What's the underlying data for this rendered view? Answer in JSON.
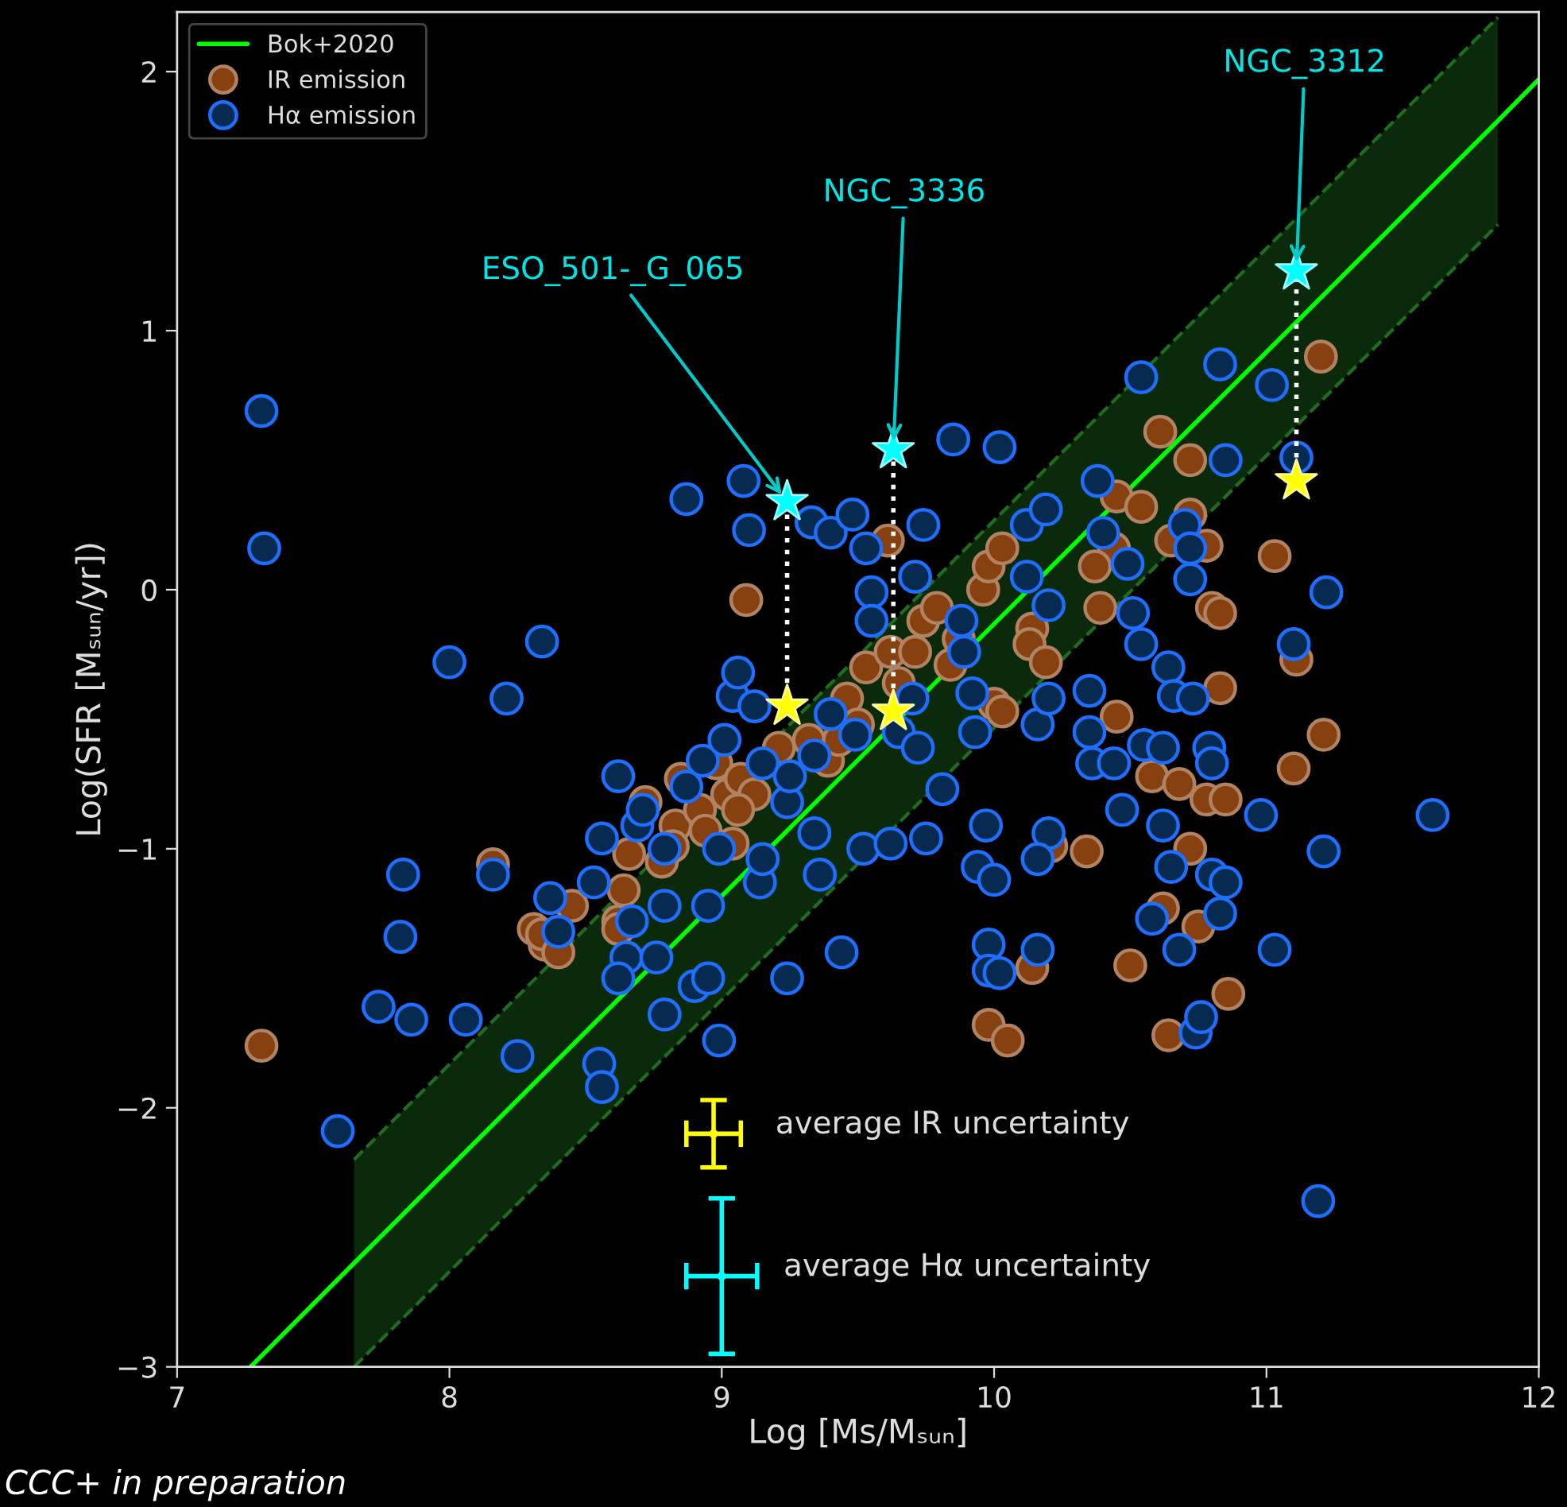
{
  "chart_data": {
    "type": "scatter",
    "xlabel": "Log [Ms/Mₛᵤₙ]",
    "ylabel": "Log(SFR [Mₛᵤₙ/yr])",
    "xlim": [
      7,
      12
    ],
    "ylim": [
      -3,
      2.23
    ],
    "xticks": [
      7,
      8,
      9,
      10,
      11,
      12
    ],
    "yticks": [
      -3,
      -2,
      -1,
      0,
      1,
      2
    ],
    "grid": false,
    "legend": "top left",
    "series": [
      {
        "name": "Bok+2020",
        "type": "line",
        "color": "#00ff00",
        "marker": "none",
        "line_style": "solid",
        "x": [
          7.27,
          7.65,
          11.85,
          12
        ],
        "values": [
          -3.0,
          -2.6,
          1.81,
          1.97
        ],
        "lower": [
          null,
          -3.0,
          1.41,
          null
        ],
        "upper": [
          null,
          -2.2,
          2.21,
          null
        ]
      },
      {
        "type": "line",
        "color": "#1e6e1e",
        "marker": "none",
        "line_style": "dashed",
        "x": [
          7.65,
          11.85
        ],
        "values": [
          -3.0,
          1.41
        ]
      },
      {
        "type": "line",
        "color": "#1e6e1e",
        "marker": "none",
        "line_style": "dashed",
        "x": [
          7.65,
          11.85
        ],
        "values": [
          -2.2,
          2.21
        ]
      },
      {
        "name": "IR emission",
        "color": "#87400f",
        "marker": "circle",
        "x": [
          7.31,
          8.16,
          8.31,
          8.35,
          8.45,
          8.62,
          8.64,
          8.72,
          8.83,
          8.85,
          8.92,
          8.98,
          9.02,
          9.09,
          9.07,
          9.12,
          9.21,
          9.32,
          9.39,
          9.43,
          9.46,
          9.5,
          9.53,
          9.61,
          9.62,
          9.65,
          9.71,
          9.74,
          9.79,
          9.84,
          9.87,
          9.96,
          9.98,
          10.03,
          10.0,
          10.03,
          10.14,
          10.13,
          10.19,
          10.39,
          10.44,
          10.61,
          10.72,
          10.45,
          10.54,
          10.72,
          10.65,
          10.78,
          10.37,
          10.8,
          10.83,
          11.03,
          11.2,
          11.11,
          10.83,
          10.45,
          11.21,
          11.1,
          10.58,
          10.68,
          10.78,
          10.85,
          10.21,
          10.34,
          10.72,
          10.62,
          10.75,
          10.14,
          10.5,
          10.86,
          9.98,
          10.05,
          10.64,
          8.34,
          8.4,
          8.62,
          8.66,
          8.78,
          8.82,
          8.94,
          9.04,
          9.06
        ],
        "values": [
          -1.76,
          -1.06,
          -1.31,
          -1.37,
          -1.22,
          -1.28,
          -1.16,
          -0.82,
          -0.91,
          -0.73,
          -0.85,
          -0.67,
          -0.79,
          -0.04,
          -0.73,
          -0.79,
          -0.61,
          -0.58,
          -0.66,
          -0.58,
          -0.42,
          -0.52,
          -0.3,
          0.19,
          -0.24,
          -0.36,
          -0.24,
          -0.12,
          -0.07,
          -0.29,
          -0.19,
          0.0,
          0.09,
          0.16,
          -0.44,
          -0.47,
          -0.15,
          -0.21,
          -0.28,
          -0.07,
          0.16,
          0.61,
          0.5,
          0.36,
          0.32,
          0.29,
          0.19,
          0.17,
          0.09,
          -0.07,
          -0.09,
          0.13,
          0.9,
          -0.27,
          -0.38,
          -0.49,
          -0.56,
          -0.69,
          -0.72,
          -0.75,
          -0.81,
          -0.81,
          -0.99,
          -1.01,
          -1.0,
          -1.23,
          -1.3,
          -1.46,
          -1.45,
          -1.56,
          -1.68,
          -1.74,
          -1.72,
          -1.33,
          -1.4,
          -1.31,
          -1.02,
          -1.05,
          -0.99,
          -0.93,
          -0.98,
          -0.85
        ]
      },
      {
        "name": "Hα emission",
        "color": "#062a50",
        "marker": "circle",
        "x": [
          7.31,
          7.32,
          7.59,
          7.74,
          7.83,
          7.82,
          7.86,
          8.0,
          8.06,
          8.16,
          8.21,
          8.25,
          8.34,
          8.37,
          8.4,
          8.55,
          8.56,
          8.53,
          8.56,
          8.62,
          8.65,
          8.62,
          8.67,
          8.69,
          8.71,
          8.79,
          8.79,
          8.76,
          8.79,
          8.87,
          8.87,
          8.93,
          8.95,
          8.9,
          8.95,
          8.99,
          8.99,
          9.04,
          9.06,
          9.08,
          9.1,
          9.12,
          9.15,
          9.01,
          9.14,
          9.15,
          9.24,
          9.25,
          9.24,
          9.33,
          9.34,
          9.34,
          9.36,
          9.4,
          9.4,
          9.44,
          9.48,
          9.49,
          9.53,
          9.52,
          9.55,
          9.55,
          9.62,
          9.65,
          9.7,
          9.71,
          9.74,
          9.72,
          9.75,
          9.81,
          9.85,
          9.88,
          9.89,
          9.92,
          9.93,
          9.94,
          10.02,
          9.97,
          10.0,
          9.98,
          9.98,
          10.02,
          10.12,
          10.12,
          10.19,
          10.2,
          10.16,
          10.2,
          10.2,
          10.16,
          10.16,
          10.35,
          10.35,
          10.36,
          10.38,
          10.4,
          10.44,
          10.47,
          10.49,
          10.54,
          10.51,
          10.54,
          10.55,
          10.58,
          10.62,
          10.62,
          10.65,
          10.64,
          10.66,
          10.68,
          10.7,
          10.72,
          10.72,
          10.73,
          10.74,
          10.76,
          10.79,
          10.8,
          10.8,
          10.83,
          10.83,
          10.85,
          10.85,
          10.98,
          11.02,
          11.03,
          11.11,
          11.22,
          11.1,
          11.61,
          11.21,
          11.19
        ],
        "values": [
          0.69,
          0.16,
          -2.09,
          -1.61,
          -1.1,
          -1.34,
          -1.66,
          -0.28,
          -1.66,
          -1.1,
          -0.42,
          -1.8,
          -0.2,
          -1.19,
          -1.32,
          -1.83,
          -1.92,
          -1.13,
          -0.96,
          -0.72,
          -1.42,
          -1.5,
          -1.28,
          -0.91,
          -0.85,
          -1.0,
          -1.22,
          -1.42,
          -1.64,
          0.35,
          -0.76,
          -0.66,
          -1.22,
          -1.53,
          -1.5,
          -1.74,
          -1.0,
          -0.41,
          -0.32,
          0.42,
          0.23,
          -0.45,
          -0.67,
          -0.58,
          -1.13,
          -1.04,
          -0.82,
          -0.72,
          -1.5,
          0.26,
          -0.64,
          -0.94,
          -1.1,
          0.22,
          -0.48,
          -1.4,
          0.29,
          -0.56,
          0.16,
          -1.0,
          -0.01,
          -0.12,
          -0.98,
          -0.55,
          -0.42,
          0.05,
          0.25,
          -0.61,
          -0.96,
          -0.77,
          0.58,
          -0.12,
          -0.24,
          -0.4,
          -0.55,
          -1.07,
          0.55,
          -0.91,
          -1.12,
          -1.37,
          -1.47,
          -1.48,
          0.25,
          0.05,
          0.31,
          -0.06,
          -0.52,
          -0.42,
          -0.94,
          -1.04,
          -1.39,
          -0.39,
          -0.55,
          -0.67,
          0.42,
          0.22,
          -0.67,
          -0.85,
          0.1,
          0.82,
          -0.09,
          -0.21,
          -0.6,
          -1.27,
          -0.91,
          -0.61,
          -1.07,
          -0.3,
          -0.41,
          -1.39,
          0.25,
          0.16,
          0.04,
          -0.42,
          -1.71,
          -1.65,
          -0.61,
          -0.67,
          -1.1,
          0.87,
          -1.25,
          -1.13,
          0.5,
          -0.87,
          0.79,
          -1.39,
          0.51,
          -0.01,
          -0.21,
          -0.87,
          -1.01,
          -2.36
        ]
      },
      {
        "color": "#00ffff",
        "marker": "star",
        "x": [
          9.24,
          9.63,
          11.11
        ],
        "values": [
          0.34,
          0.54,
          1.23
        ]
      },
      {
        "color": "#ffff00",
        "marker": "star",
        "x": [
          9.24,
          9.63,
          11.11
        ],
        "values": [
          -0.45,
          -0.47,
          0.42
        ]
      },
      {
        "type": "line",
        "color": "#ffffff",
        "marker": "none",
        "line_style": "dotted",
        "x": [
          9.24,
          9.24
        ],
        "values": [
          -0.45,
          0.34
        ]
      },
      {
        "type": "line",
        "color": "#ffffff",
        "marker": "none",
        "line_style": "dotted",
        "x": [
          9.63,
          9.63
        ],
        "values": [
          -0.47,
          0.54
        ]
      },
      {
        "type": "line",
        "color": "#ffffff",
        "marker": "none",
        "line_style": "dotted",
        "x": [
          11.11,
          11.11
        ],
        "values": [
          0.42,
          1.23
        ]
      },
      {
        "color": "#ffff00",
        "marker": "circle",
        "x": [
          8.97
        ],
        "values": [
          -2.1
        ],
        "errors": [
          0.13
        ],
        "xerrors": [
          0.1
        ]
      },
      {
        "color": "#00ffff",
        "marker": "circle",
        "x": [
          9.0
        ],
        "values": [
          -2.65
        ],
        "errors": [
          0.3
        ],
        "xerrors": [
          0.13
        ]
      }
    ],
    "annotations": [
      {
        "text": "ESO_501-_G_065",
        "x": 9.24,
        "y": 0.34
      },
      {
        "text": "NGC_3336",
        "x": 9.63,
        "y": 0.54
      },
      {
        "text": "NGC_3312",
        "x": 11.11,
        "y": 1.23
      },
      {
        "text": "average IR uncertainty",
        "x": 8.97,
        "y": -2.1
      },
      {
        "text": "average Hα uncertainty",
        "x": 9.0,
        "y": -2.65
      },
      "CCC+ in preparation"
    ]
  }
}
